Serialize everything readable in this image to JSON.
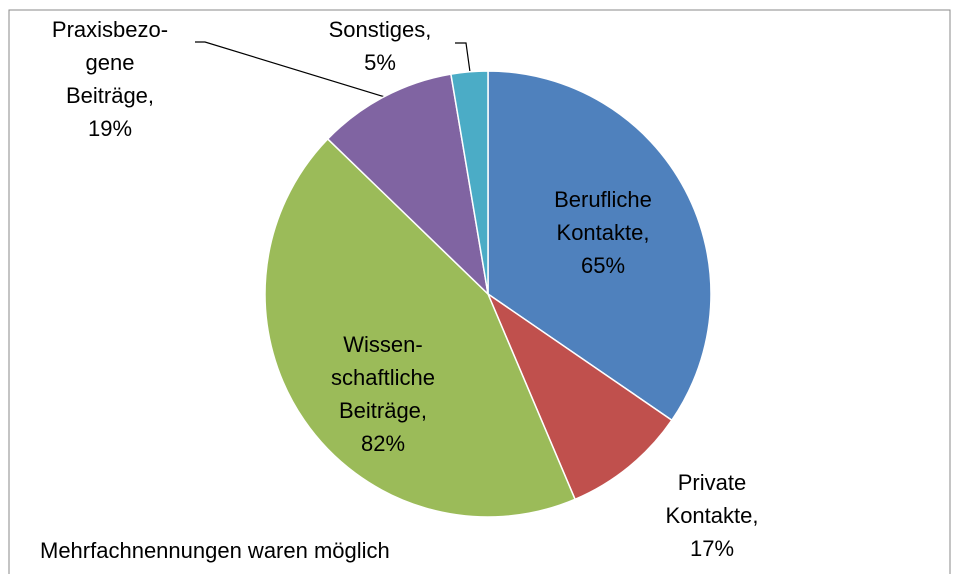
{
  "chart_data": {
    "type": "pie",
    "labels": [
      [
        "Berufliche",
        "Kontakte,"
      ],
      [
        "Private",
        "Kontakte,"
      ],
      [
        "Wissen-",
        "schaftliche",
        "Beiträge,"
      ],
      [
        "Praxisbezo-",
        "gene",
        "Beiträge,"
      ],
      [
        "Sonstiges,"
      ]
    ],
    "values": [
      65,
      17,
      82,
      19,
      5
    ],
    "value_labels": [
      "65%",
      "17%",
      "82%",
      "19%",
      "5%"
    ],
    "colors": [
      "#4f81bd",
      "#c0504d",
      "#9bbb59",
      "#8064a2",
      "#4bacc6"
    ],
    "note": "Mehrfachnennungen waren möglich"
  }
}
